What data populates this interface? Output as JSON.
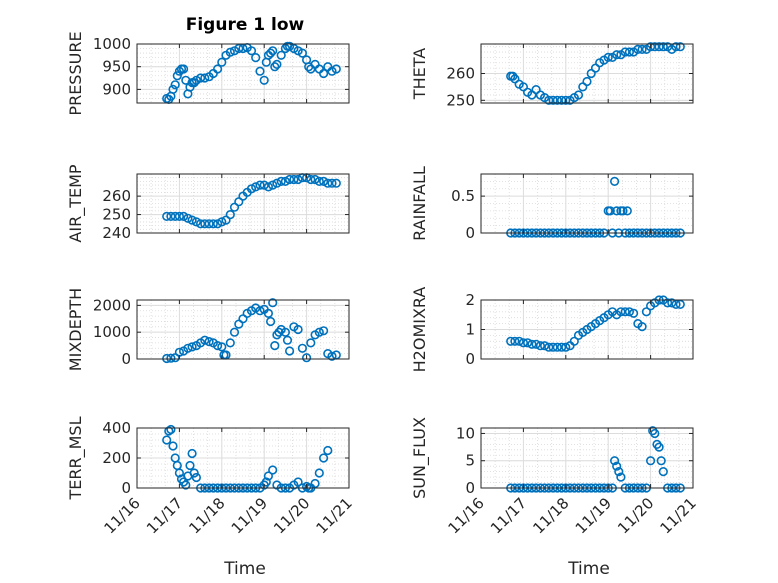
{
  "figure": {
    "title": "Figure 1 low",
    "xlabel": "Time",
    "x_tick_labels": [
      "11/16",
      "11/17",
      "11/18",
      "11/19",
      "11/20",
      "11/21"
    ]
  },
  "chart_data": [
    {
      "type": "scatter",
      "ylabel": "PRESSURE",
      "title": "Figure 1 low",
      "xlim": [
        0,
        5
      ],
      "ylim": [
        870,
        1000
      ],
      "yticks": [
        900,
        950,
        1000
      ],
      "grid": true,
      "marker": "o",
      "color": "#0072BD",
      "x": [
        0.7,
        0.75,
        0.8,
        0.85,
        0.9,
        0.95,
        1.0,
        1.05,
        1.1,
        1.15,
        1.2,
        1.25,
        1.3,
        1.35,
        1.4,
        1.5,
        1.6,
        1.7,
        1.8,
        1.9,
        2.0,
        2.1,
        2.2,
        2.3,
        2.4,
        2.5,
        2.6,
        2.7,
        2.8,
        2.9,
        3.0,
        3.05,
        3.1,
        3.15,
        3.2,
        3.25,
        3.3,
        3.4,
        3.5,
        3.55,
        3.6,
        3.7,
        3.8,
        3.9,
        4.0,
        4.05,
        4.1,
        4.2,
        4.3,
        4.4,
        4.5,
        4.6,
        4.7
      ],
      "y": [
        880,
        878,
        885,
        900,
        910,
        930,
        940,
        945,
        945,
        920,
        890,
        905,
        915,
        915,
        920,
        925,
        925,
        928,
        935,
        945,
        960,
        975,
        982,
        985,
        990,
        990,
        992,
        985,
        970,
        940,
        920,
        960,
        975,
        980,
        985,
        950,
        955,
        975,
        990,
        995,
        995,
        990,
        985,
        980,
        965,
        950,
        945,
        955,
        945,
        935,
        950,
        940,
        945
      ]
    },
    {
      "type": "scatter",
      "ylabel": "THETA",
      "xlim": [
        0,
        5
      ],
      "ylim": [
        249,
        271
      ],
      "yticks": [
        250,
        260
      ],
      "grid": true,
      "marker": "o",
      "color": "#0072BD",
      "x": [
        0.7,
        0.75,
        0.8,
        0.9,
        1.0,
        1.1,
        1.2,
        1.3,
        1.4,
        1.5,
        1.6,
        1.7,
        1.8,
        1.9,
        2.0,
        2.1,
        2.2,
        2.3,
        2.4,
        2.5,
        2.6,
        2.7,
        2.8,
        2.9,
        3.0,
        3.1,
        3.2,
        3.3,
        3.4,
        3.5,
        3.6,
        3.7,
        3.8,
        3.9,
        4.0,
        4.1,
        4.2,
        4.3,
        4.4,
        4.5,
        4.6,
        4.7
      ],
      "y": [
        259,
        259,
        258,
        256,
        255,
        253,
        252,
        254,
        252,
        251,
        250,
        250,
        250,
        250,
        250,
        250,
        251,
        252,
        255,
        257,
        260,
        262,
        264,
        265,
        266,
        266,
        267,
        267,
        268,
        268,
        268,
        269,
        269,
        269,
        270,
        270,
        270,
        270,
        270,
        269,
        270,
        270
      ]
    },
    {
      "type": "scatter",
      "ylabel": "AIR_TEMP",
      "xlim": [
        0,
        5
      ],
      "ylim": [
        240,
        272
      ],
      "yticks": [
        240,
        250,
        260
      ],
      "grid": true,
      "marker": "o",
      "color": "#0072BD",
      "x": [
        0.7,
        0.8,
        0.9,
        1.0,
        1.1,
        1.2,
        1.3,
        1.4,
        1.5,
        1.6,
        1.7,
        1.8,
        1.9,
        2.0,
        2.1,
        2.2,
        2.3,
        2.4,
        2.5,
        2.6,
        2.7,
        2.8,
        2.9,
        3.0,
        3.1,
        3.2,
        3.3,
        3.4,
        3.5,
        3.6,
        3.7,
        3.8,
        3.9,
        4.0,
        4.1,
        4.2,
        4.3,
        4.4,
        4.5,
        4.6,
        4.7
      ],
      "y": [
        249,
        249,
        249,
        249,
        249,
        248,
        247,
        246,
        245,
        245,
        245,
        245,
        245,
        246,
        247,
        250,
        254,
        257,
        260,
        262,
        264,
        265,
        266,
        266,
        265,
        266,
        267,
        268,
        268,
        269,
        269,
        269,
        270,
        270,
        269,
        269,
        268,
        268,
        267,
        267,
        267
      ]
    },
    {
      "type": "scatter",
      "ylabel": "RAINFALL",
      "xlim": [
        0,
        5
      ],
      "ylim": [
        0,
        0.8
      ],
      "yticks": [
        0,
        0.5
      ],
      "grid": true,
      "marker": "o",
      "color": "#0072BD",
      "x": [
        0.7,
        0.8,
        0.9,
        1.0,
        1.1,
        1.2,
        1.3,
        1.4,
        1.5,
        1.6,
        1.7,
        1.8,
        1.9,
        2.0,
        2.1,
        2.2,
        2.3,
        2.4,
        2.5,
        2.6,
        2.7,
        2.8,
        2.9,
        3.0,
        3.05,
        3.1,
        3.15,
        3.2,
        3.25,
        3.3,
        3.35,
        3.4,
        3.45,
        3.5,
        3.6,
        3.7,
        3.8,
        3.9,
        4.0,
        4.1,
        4.2,
        4.3,
        4.4,
        4.5,
        4.6,
        4.7
      ],
      "y": [
        0,
        0,
        0,
        0,
        0,
        0,
        0,
        0,
        0,
        0,
        0,
        0,
        0,
        0,
        0,
        0,
        0,
        0,
        0,
        0,
        0,
        0,
        0,
        0.3,
        0.3,
        0,
        0.7,
        0.3,
        0,
        0.3,
        0.3,
        0,
        0.3,
        0,
        0,
        0,
        0,
        0,
        0,
        0,
        0,
        0,
        0,
        0,
        0,
        0
      ]
    },
    {
      "type": "scatter",
      "ylabel": "MIXDEPTH",
      "xlim": [
        0,
        5
      ],
      "ylim": [
        0,
        2200
      ],
      "yticks": [
        0,
        1000,
        2000
      ],
      "grid": true,
      "marker": "o",
      "color": "#0072BD",
      "x": [
        0.7,
        0.8,
        0.9,
        1.0,
        1.1,
        1.2,
        1.3,
        1.4,
        1.5,
        1.6,
        1.7,
        1.8,
        1.9,
        2.0,
        2.05,
        2.1,
        2.2,
        2.3,
        2.4,
        2.5,
        2.6,
        2.7,
        2.8,
        2.9,
        3.0,
        3.1,
        3.15,
        3.2,
        3.25,
        3.3,
        3.35,
        3.4,
        3.5,
        3.55,
        3.6,
        3.7,
        3.8,
        3.9,
        4.0,
        4.1,
        4.2,
        4.3,
        4.4,
        4.5,
        4.6,
        4.7
      ],
      "y": [
        20,
        30,
        50,
        250,
        300,
        400,
        450,
        500,
        600,
        700,
        650,
        600,
        500,
        450,
        150,
        150,
        600,
        1000,
        1300,
        1500,
        1700,
        1800,
        1900,
        1800,
        1850,
        1700,
        1400,
        2100,
        500,
        900,
        1000,
        1100,
        1000,
        700,
        300,
        1200,
        1100,
        400,
        50,
        600,
        900,
        1000,
        1050,
        200,
        100,
        150
      ]
    },
    {
      "type": "scatter",
      "ylabel": "H2OMIXRA",
      "xlim": [
        0,
        5
      ],
      "ylim": [
        0,
        2
      ],
      "yticks": [
        0,
        1,
        2
      ],
      "grid": true,
      "marker": "o",
      "color": "#0072BD",
      "x": [
        0.7,
        0.8,
        0.9,
        1.0,
        1.1,
        1.2,
        1.3,
        1.4,
        1.5,
        1.6,
        1.7,
        1.8,
        1.9,
        2.0,
        2.1,
        2.2,
        2.3,
        2.4,
        2.5,
        2.6,
        2.7,
        2.8,
        2.9,
        3.0,
        3.1,
        3.2,
        3.3,
        3.4,
        3.5,
        3.6,
        3.7,
        3.8,
        3.9,
        4.0,
        4.1,
        4.2,
        4.3,
        4.4,
        4.5,
        4.6,
        4.7
      ],
      "y": [
        0.6,
        0.6,
        0.6,
        0.55,
        0.55,
        0.5,
        0.5,
        0.45,
        0.45,
        0.4,
        0.4,
        0.4,
        0.4,
        0.4,
        0.45,
        0.6,
        0.8,
        0.9,
        1.0,
        1.1,
        1.2,
        1.3,
        1.4,
        1.5,
        1.6,
        1.5,
        1.6,
        1.6,
        1.6,
        1.55,
        1.2,
        1.1,
        1.6,
        1.8,
        1.9,
        2.0,
        2.0,
        1.9,
        1.9,
        1.85,
        1.85
      ]
    },
    {
      "type": "scatter",
      "ylabel": "TERR_MSL",
      "xlim": [
        0,
        5
      ],
      "ylim": [
        0,
        400
      ],
      "yticks": [
        0,
        200,
        400
      ],
      "grid": true,
      "marker": "o",
      "color": "#0072BD",
      "x": [
        0.7,
        0.75,
        0.8,
        0.85,
        0.9,
        0.95,
        1.0,
        1.05,
        1.1,
        1.15,
        1.2,
        1.25,
        1.3,
        1.35,
        1.4,
        1.5,
        1.6,
        1.7,
        1.8,
        1.9,
        2.0,
        2.1,
        2.2,
        2.3,
        2.4,
        2.5,
        2.6,
        2.7,
        2.8,
        2.9,
        3.0,
        3.05,
        3.1,
        3.2,
        3.3,
        3.4,
        3.5,
        3.6,
        3.7,
        3.8,
        3.9,
        4.0,
        4.05,
        4.1,
        4.2,
        4.3,
        4.4,
        4.5
      ],
      "y": [
        320,
        380,
        390,
        280,
        200,
        150,
        100,
        60,
        40,
        20,
        80,
        150,
        230,
        100,
        70,
        0,
        0,
        0,
        0,
        0,
        0,
        0,
        0,
        0,
        0,
        0,
        0,
        0,
        0,
        0,
        20,
        40,
        80,
        120,
        20,
        0,
        0,
        0,
        20,
        40,
        0,
        10,
        0,
        0,
        30,
        100,
        200,
        250
      ]
    },
    {
      "type": "scatter",
      "ylabel": "SUN_FLUX",
      "xlim": [
        0,
        5
      ],
      "ylim": [
        0,
        11
      ],
      "yticks": [
        0,
        5,
        10
      ],
      "grid": true,
      "marker": "o",
      "color": "#0072BD",
      "x": [
        0.7,
        0.8,
        0.9,
        1.0,
        1.1,
        1.2,
        1.3,
        1.4,
        1.5,
        1.6,
        1.7,
        1.8,
        1.9,
        2.0,
        2.1,
        2.2,
        2.3,
        2.4,
        2.5,
        2.6,
        2.7,
        2.8,
        2.9,
        3.0,
        3.1,
        3.15,
        3.2,
        3.25,
        3.3,
        3.4,
        3.5,
        3.6,
        3.7,
        3.8,
        3.9,
        4.0,
        4.05,
        4.1,
        4.15,
        4.2,
        4.25,
        4.3,
        4.4,
        4.5,
        4.6,
        4.7
      ],
      "y": [
        0,
        0,
        0,
        0,
        0,
        0,
        0,
        0,
        0,
        0,
        0,
        0,
        0,
        0,
        0,
        0,
        0,
        0,
        0,
        0,
        0,
        0,
        0,
        0,
        0,
        5,
        4,
        3,
        2,
        0,
        0,
        0,
        0,
        0,
        0,
        5,
        10.5,
        10,
        8,
        7.5,
        5,
        3,
        0,
        0,
        0,
        0
      ]
    }
  ]
}
